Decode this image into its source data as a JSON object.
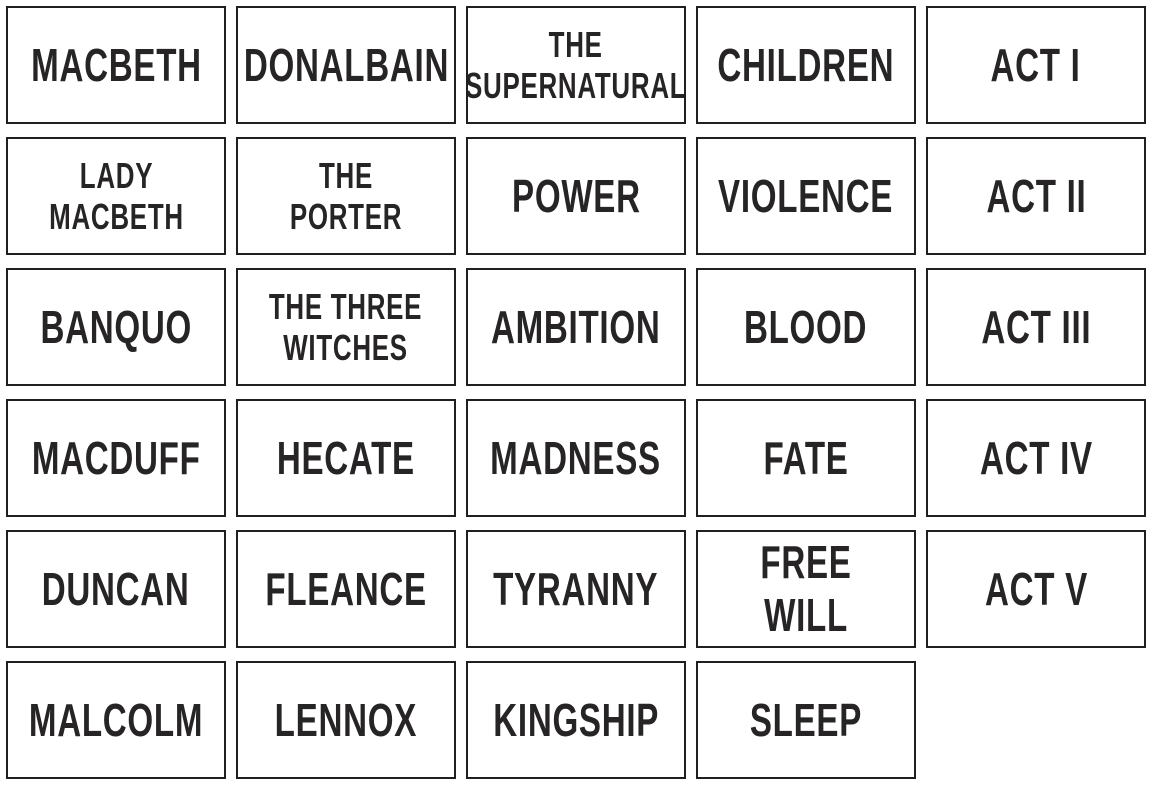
{
  "colors": {
    "page_background": "#ffffff",
    "card_background": "#ffffff",
    "card_border": "#202020",
    "card_text": "#262424"
  },
  "grid": {
    "columns": 5,
    "rows": 6
  },
  "cards": [
    {
      "label": "MACBETH",
      "size": "lg"
    },
    {
      "label": "DONALBAIN",
      "size": "lg"
    },
    {
      "label": "THE\nSUPERNATURAL",
      "size": "md"
    },
    {
      "label": "CHILDREN",
      "size": "lg"
    },
    {
      "label": "ACT I",
      "size": "lg"
    },
    {
      "label": "LADY\nMACBETH",
      "size": "md"
    },
    {
      "label": "THE\nPORTER",
      "size": "md"
    },
    {
      "label": "POWER",
      "size": "lg"
    },
    {
      "label": "VIOLENCE",
      "size": "lg"
    },
    {
      "label": "ACT II",
      "size": "lg"
    },
    {
      "label": "BANQUO",
      "size": "lg"
    },
    {
      "label": "THE THREE\nWITCHES",
      "size": "md"
    },
    {
      "label": "AMBITION",
      "size": "lg"
    },
    {
      "label": "BLOOD",
      "size": "lg"
    },
    {
      "label": "ACT III",
      "size": "lg"
    },
    {
      "label": "MACDUFF",
      "size": "lg"
    },
    {
      "label": "HECATE",
      "size": "lg"
    },
    {
      "label": "MADNESS",
      "size": "lg"
    },
    {
      "label": "FATE",
      "size": "lg"
    },
    {
      "label": "ACT IV",
      "size": "lg"
    },
    {
      "label": "DUNCAN",
      "size": "lg"
    },
    {
      "label": "FLEANCE",
      "size": "lg"
    },
    {
      "label": "TYRANNY",
      "size": "lg"
    },
    {
      "label": "FREE WILL",
      "size": "lg"
    },
    {
      "label": "ACT V",
      "size": "lg"
    },
    {
      "label": "MALCOLM",
      "size": "lg"
    },
    {
      "label": "LENNOX",
      "size": "lg"
    },
    {
      "label": "KINGSHIP",
      "size": "lg"
    },
    {
      "label": "SLEEP",
      "size": "lg"
    }
  ]
}
